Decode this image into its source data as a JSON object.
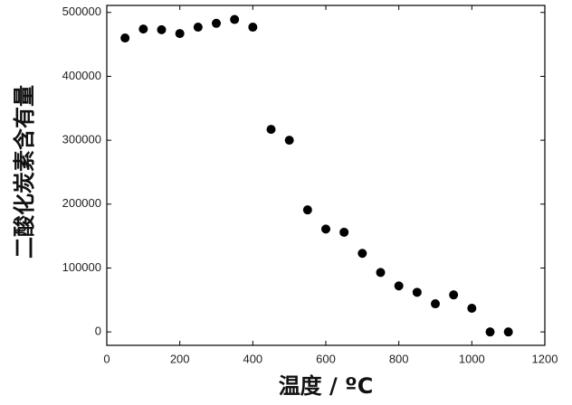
{
  "chart_data": {
    "type": "scatter",
    "x_label": "温度 / ºC",
    "y_label": "二酸化炭素含有量",
    "x": [
      50,
      100,
      150,
      200,
      250,
      300,
      350,
      400,
      450,
      500,
      550,
      600,
      650,
      700,
      750,
      800,
      850,
      900,
      950,
      1000,
      1050,
      1100
    ],
    "values": [
      460000,
      474000,
      473000,
      467000,
      477000,
      483000,
      489000,
      477000,
      317000,
      300000,
      191000,
      161000,
      156000,
      123000,
      93000,
      72000,
      62000,
      44000,
      58000,
      37000,
      0,
      0
    ],
    "color": "#000000",
    "xlim": [
      0,
      1200
    ],
    "xticks": [
      0,
      200,
      400,
      600,
      800,
      1000,
      1200
    ],
    "ylim": [
      -21000,
      511000
    ],
    "yticks": [
      0,
      100000,
      200000,
      300000,
      400000,
      500000
    ]
  }
}
